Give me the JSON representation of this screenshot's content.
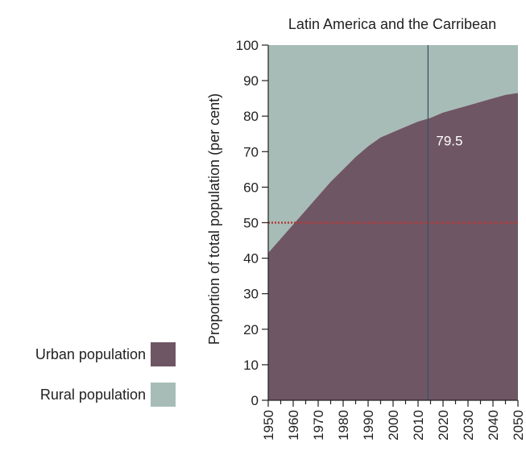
{
  "chart_data": {
    "type": "area",
    "title": "Latin America and the Carribean",
    "ylabel": "Proportion of total population (per cent)",
    "xlabel": "",
    "xlim": [
      1950,
      2050
    ],
    "ylim": [
      0,
      100
    ],
    "x_ticks": [
      "1950",
      "1960",
      "1970",
      "1980",
      "1990",
      "2000",
      "2010",
      "2020",
      "2030",
      "2040",
      "2050"
    ],
    "y_ticks": [
      "0",
      "10",
      "20",
      "30",
      "40",
      "50",
      "60",
      "70",
      "80",
      "90",
      "100"
    ],
    "series": [
      {
        "name": "Urban population",
        "color": "#6f5664",
        "x": [
          1950,
          1955,
          1960,
          1965,
          1970,
          1975,
          1980,
          1985,
          1990,
          1995,
          2000,
          2005,
          2010,
          2015,
          2020,
          2025,
          2030,
          2035,
          2040,
          2045,
          2050
        ],
        "values": [
          41.5,
          45.5,
          49.5,
          53.5,
          57.5,
          61.5,
          65,
          68.5,
          71.5,
          74,
          75.5,
          77,
          78.5,
          79.5,
          81,
          82,
          83,
          84,
          85,
          86,
          86.5
        ]
      },
      {
        "name": "Rural population",
        "color": "#a7bcb6",
        "x": [
          1950,
          1955,
          1960,
          1965,
          1970,
          1975,
          1980,
          1985,
          1990,
          1995,
          2000,
          2005,
          2010,
          2015,
          2020,
          2025,
          2030,
          2035,
          2040,
          2045,
          2050
        ],
        "values": [
          58.5,
          54.5,
          50.5,
          46.5,
          42.5,
          38.5,
          35,
          31.5,
          28.5,
          26,
          24.5,
          23,
          21.5,
          20.5,
          19,
          18,
          17,
          16,
          15,
          14,
          13.5
        ]
      }
    ],
    "reference_line": {
      "y": 50,
      "color": "#b23a3a",
      "style": "dotted"
    },
    "marker_line": {
      "x": 2014,
      "label": "79.5",
      "color": "#3b5566"
    },
    "grid": false,
    "legend_position": "left"
  }
}
